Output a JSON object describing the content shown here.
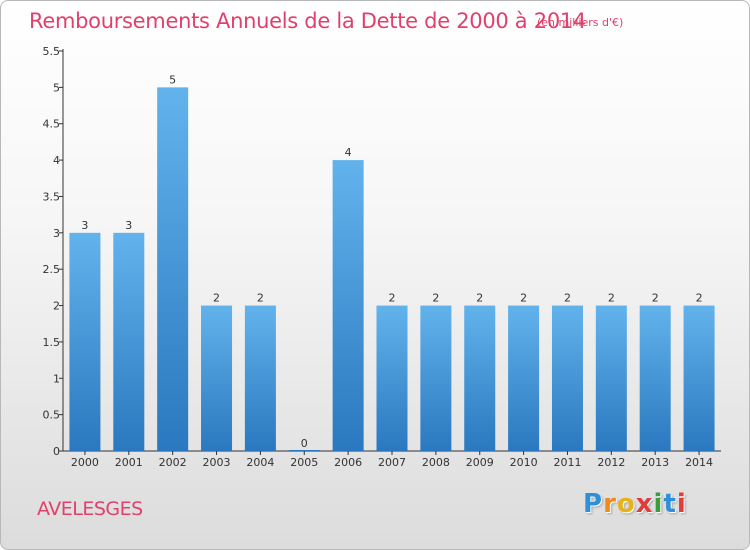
{
  "header": {
    "title": "Remboursements Annuels de la Dette de 2000 à 2014",
    "unit": "(en milliers d'€)"
  },
  "footer": {
    "town": "AVELESGES",
    "logo_letters": [
      "P",
      "r",
      "o",
      "x",
      "i",
      "t",
      "i"
    ],
    "logo_colors": [
      "#2f8fd8",
      "#f08a1c",
      "#e8b21a",
      "#e23b3b",
      "#3a9c3a",
      "#2f8fd8",
      "#e23b3b"
    ]
  },
  "colors": {
    "title": "#e0416c",
    "bar_top": "#62b3ec",
    "bar_bottom": "#2a78bf"
  },
  "chart_data": {
    "type": "bar",
    "categories": [
      "2000",
      "2001",
      "2002",
      "2003",
      "2004",
      "2005",
      "2006",
      "2007",
      "2008",
      "2009",
      "2010",
      "2011",
      "2012",
      "2013",
      "2014"
    ],
    "values": [
      3,
      3,
      5,
      2,
      2,
      0,
      4,
      2,
      2,
      2,
      2,
      2,
      2,
      2,
      2
    ],
    "data_labels": [
      "3",
      "3",
      "5",
      "2",
      "2",
      "0",
      "4",
      "2",
      "2",
      "2",
      "2",
      "2",
      "2",
      "2",
      "2"
    ],
    "yticks": [
      0,
      0.5,
      1,
      1.5,
      2,
      2.5,
      3,
      3.5,
      4,
      4.5,
      5,
      5.5
    ],
    "ytick_labels": [
      "0",
      "0.5",
      "1",
      "1.5",
      "2",
      "2.5",
      "3",
      "3.5",
      "4",
      "4.5",
      "5",
      "5.5"
    ],
    "ylim": [
      0,
      5.5
    ],
    "xlabel": "",
    "ylabel": "",
    "grid": false,
    "legend": "none"
  }
}
